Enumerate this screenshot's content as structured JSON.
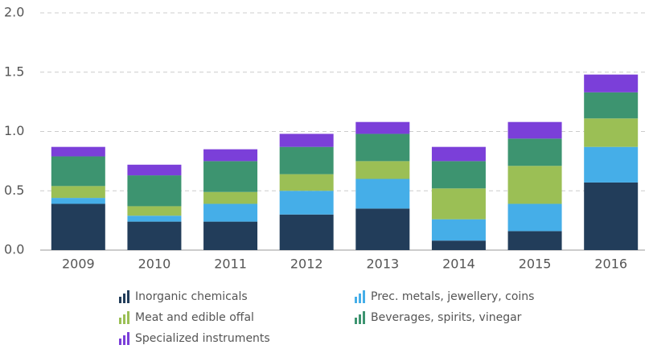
{
  "chart_data": {
    "type": "bar",
    "stacked": true,
    "categories": [
      "2009",
      "2010",
      "2011",
      "2012",
      "2013",
      "2014",
      "2015",
      "2016"
    ],
    "series": [
      {
        "name": "Inorganic chemicals",
        "color": "#223d5a",
        "values": [
          0.39,
          0.24,
          0.24,
          0.3,
          0.35,
          0.08,
          0.16,
          0.57
        ]
      },
      {
        "name": "Prec. metals, jewellery, coins",
        "color": "#45aee8",
        "values": [
          0.05,
          0.05,
          0.15,
          0.2,
          0.25,
          0.18,
          0.23,
          0.3
        ]
      },
      {
        "name": "Meat and edible offal",
        "color": "#9bbf55",
        "values": [
          0.1,
          0.08,
          0.1,
          0.14,
          0.15,
          0.26,
          0.32,
          0.24
        ]
      },
      {
        "name": "Beverages, spirits, vinegar",
        "color": "#3d9470",
        "values": [
          0.25,
          0.26,
          0.26,
          0.23,
          0.23,
          0.23,
          0.23,
          0.22
        ]
      },
      {
        "name": "Specialized instruments",
        "color": "#7b3fd9",
        "values": [
          0.08,
          0.09,
          0.1,
          0.11,
          0.1,
          0.12,
          0.14,
          0.15
        ]
      }
    ],
    "ylim": [
      0,
      2
    ],
    "yticks": [
      {
        "value": 0,
        "label": "0.0"
      },
      0.5,
      {
        "value": 1,
        "label": "1.0"
      },
      1.5,
      {
        "value": 2,
        "label": "2.0"
      }
    ],
    "grid": true,
    "legend": "bottom"
  }
}
